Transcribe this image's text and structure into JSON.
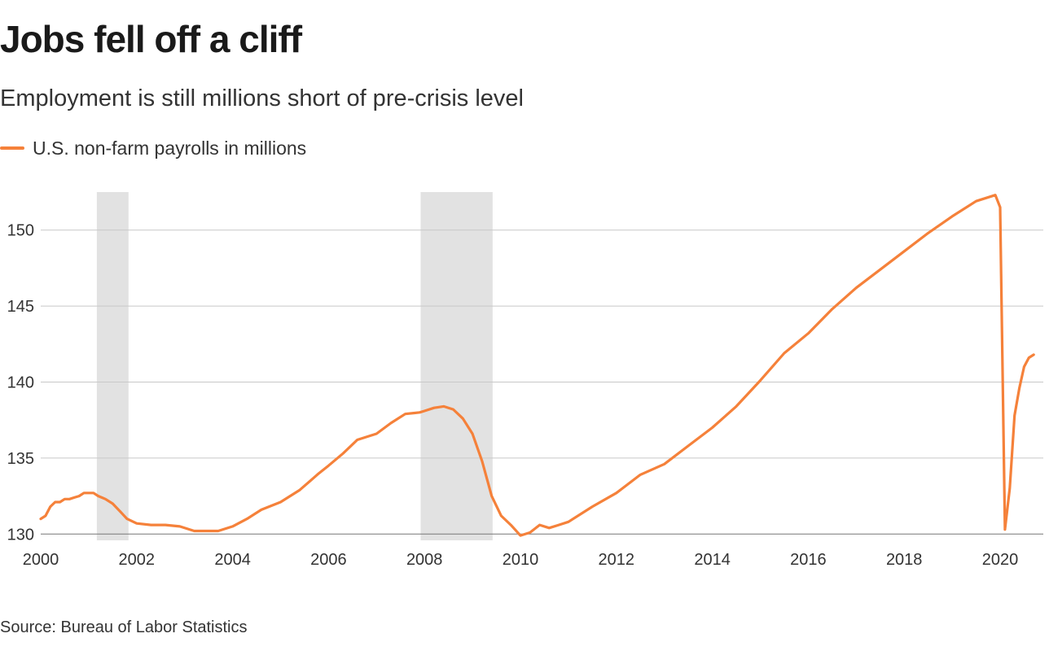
{
  "title": "Jobs fell off a cliff",
  "subtitle": "Employment is still millions short of pre-crisis level",
  "source": "Source: Bureau of Labor Statistics",
  "colors": {
    "line": "#f5813a",
    "recession": "#e2e2e2",
    "grid": "#c8c8c8",
    "axis": "#777777"
  },
  "chart_data": {
    "type": "line",
    "title": "Jobs fell off a cliff",
    "subtitle": "Employment is still millions short of pre-crisis level",
    "legend": "top-left",
    "grid": true,
    "xlim": [
      2000,
      2020.9
    ],
    "ylim": [
      129.8,
      152.5
    ],
    "x_ticks": [
      2000,
      2002,
      2004,
      2006,
      2008,
      2010,
      2012,
      2014,
      2016,
      2018,
      2020
    ],
    "y_ticks": [
      130,
      135,
      140,
      145,
      150
    ],
    "recessions": [
      [
        2001.17,
        2001.83
      ],
      [
        2007.92,
        2009.42
      ]
    ],
    "series": [
      {
        "name": "U.S. non-farm payrolls in millions",
        "x": [
          2000.0,
          2000.1,
          2000.2,
          2000.3,
          2000.4,
          2000.5,
          2000.6,
          2000.7,
          2000.8,
          2000.9,
          2001.0,
          2001.1,
          2001.2,
          2001.35,
          2001.5,
          2001.65,
          2001.8,
          2002.0,
          2002.3,
          2002.6,
          2002.9,
          2003.2,
          2003.5,
          2003.7,
          2004.0,
          2004.3,
          2004.6,
          2005.0,
          2005.4,
          2005.8,
          2006.0,
          2006.3,
          2006.6,
          2007.0,
          2007.3,
          2007.6,
          2007.9,
          2008.0,
          2008.2,
          2008.4,
          2008.6,
          2008.8,
          2009.0,
          2009.2,
          2009.4,
          2009.6,
          2009.8,
          2010.0,
          2010.2,
          2010.4,
          2010.6,
          2010.8,
          2011.0,
          2011.5,
          2012.0,
          2012.5,
          2013.0,
          2013.5,
          2014.0,
          2014.5,
          2015.0,
          2015.5,
          2016.0,
          2016.5,
          2017.0,
          2017.5,
          2018.0,
          2018.5,
          2019.0,
          2019.5,
          2019.9,
          2020.0,
          2020.1,
          2020.2,
          2020.3,
          2020.4,
          2020.5,
          2020.6,
          2020.7
        ],
        "values": [
          131.0,
          131.2,
          131.8,
          132.1,
          132.1,
          132.3,
          132.3,
          132.4,
          132.5,
          132.7,
          132.7,
          132.7,
          132.5,
          132.3,
          132.0,
          131.5,
          131.0,
          130.7,
          130.6,
          130.6,
          130.5,
          130.2,
          130.2,
          130.2,
          130.5,
          131.0,
          131.6,
          132.1,
          132.9,
          134.0,
          134.5,
          135.3,
          136.2,
          136.6,
          137.3,
          137.9,
          138.0,
          138.1,
          138.3,
          138.4,
          138.2,
          137.6,
          136.6,
          134.8,
          132.5,
          131.2,
          130.6,
          129.9,
          130.1,
          130.6,
          130.4,
          130.6,
          130.8,
          131.8,
          132.7,
          133.9,
          134.6,
          135.8,
          137.0,
          138.4,
          140.1,
          141.9,
          143.2,
          144.8,
          146.2,
          147.4,
          148.6,
          149.8,
          150.9,
          151.9,
          152.3,
          151.5,
          130.3,
          133.0,
          137.8,
          139.6,
          141.0,
          141.6,
          141.8
        ]
      }
    ]
  }
}
